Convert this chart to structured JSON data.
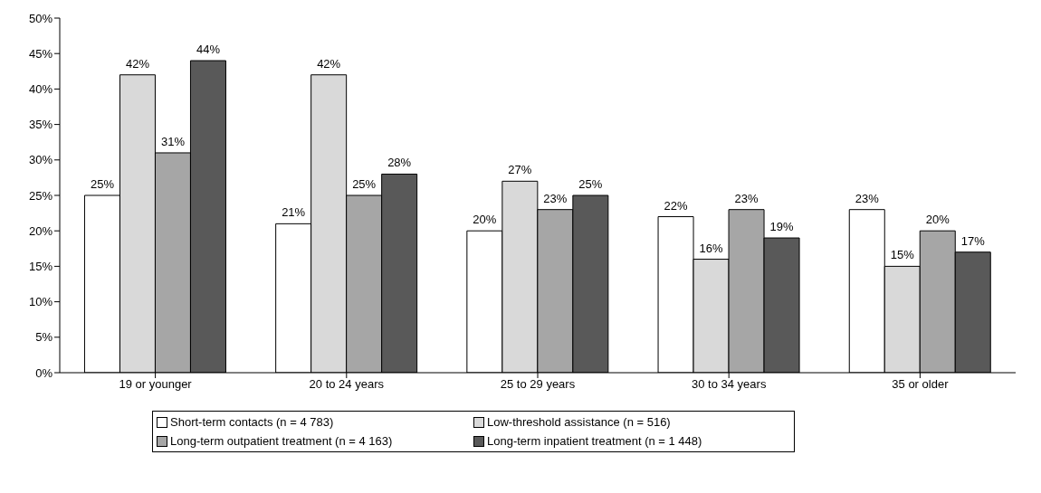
{
  "chart_data": {
    "type": "bar",
    "categories": [
      "19 or younger",
      "20 to 24 years",
      "25 to 29 years",
      "30 to 34 years",
      "35 or older"
    ],
    "series": [
      {
        "name": "Short-term contacts (n = 4 783)",
        "color": "#ffffff",
        "values": [
          25,
          21,
          20,
          22,
          23
        ],
        "value_labels": [
          "25%",
          "21%",
          "20%",
          "22%",
          "23%"
        ]
      },
      {
        "name": "Low-threshold assistance (n = 516)",
        "color": "#d9d9d9",
        "values": [
          42,
          42,
          27,
          16,
          15
        ],
        "value_labels": [
          "42%",
          "42%",
          "27%",
          "16%",
          "15%"
        ]
      },
      {
        "name": "Long-term outpatient treatment (n = 4 163)",
        "color": "#a6a6a6",
        "values": [
          31,
          25,
          23,
          23,
          20
        ],
        "value_labels": [
          "31%",
          "25%",
          "23%",
          "23%",
          "20%"
        ]
      },
      {
        "name": "Long-term inpatient treatment (n = 1 448)",
        "color": "#595959",
        "values": [
          44,
          28,
          25,
          19,
          17
        ],
        "value_labels": [
          "44%",
          "28%",
          "25%",
          "19%",
          "17%"
        ]
      }
    ],
    "ylim": [
      0,
      50
    ],
    "yticks": [
      {
        "value": 0,
        "label": "0%"
      },
      {
        "value": 5,
        "label": "5%"
      },
      {
        "value": 10,
        "label": "10%"
      },
      {
        "value": 15,
        "label": "15%"
      },
      {
        "value": 20,
        "label": "20%"
      },
      {
        "value": 25,
        "label": "25%"
      },
      {
        "value": 30,
        "label": "30%"
      },
      {
        "value": 35,
        "label": "35%"
      },
      {
        "value": 40,
        "label": "40%"
      },
      {
        "value": 45,
        "label": "45%"
      },
      {
        "value": 50,
        "label": "50%"
      }
    ],
    "grid": false,
    "legend": "bottom"
  }
}
